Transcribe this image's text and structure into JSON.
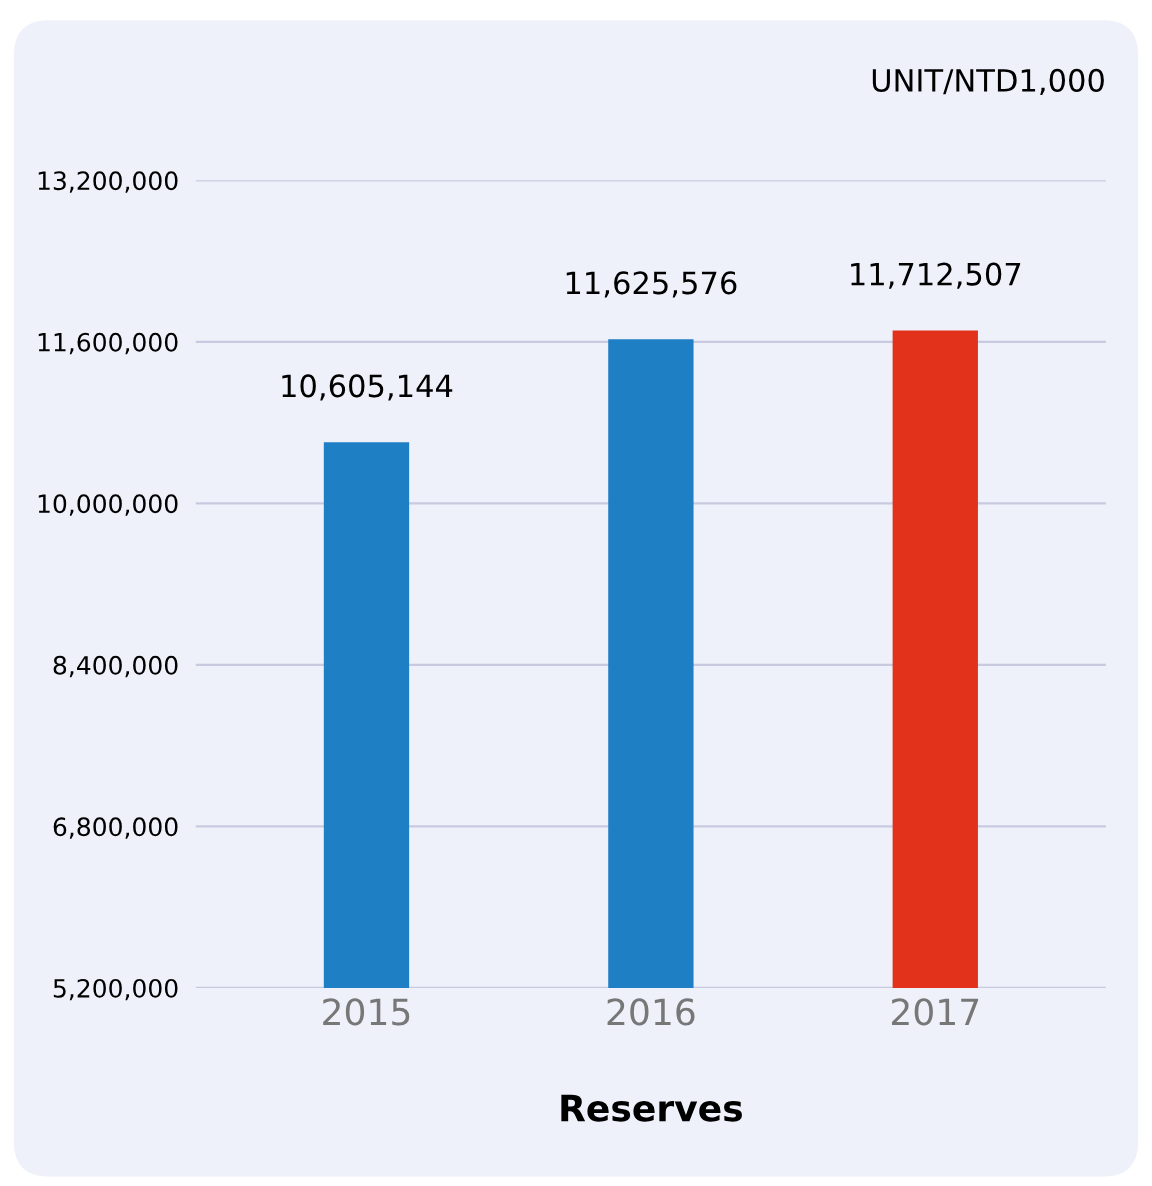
{
  "chart_data": {
    "type": "bar",
    "xlabel": "Reserves",
    "categories": [
      "2015",
      "2016",
      "2017"
    ],
    "values": [
      10605144,
      11625576,
      11712507
    ],
    "colors": [
      "#1f7fc4",
      "#1f7fc4",
      "#e2321c"
    ],
    "value_labels": [
      "10,605,144",
      "11,625,576",
      "11,712,507"
    ],
    "ylim": [
      5200000,
      13200000
    ],
    "yticks": [
      {
        "value": 5200000,
        "label": "5,200,000"
      },
      {
        "value": 6800000,
        "label": "6,800,000"
      },
      {
        "value": 8400000,
        "label": "8,400,000"
      },
      {
        "value": 10000000,
        "label": "10,000,000"
      },
      {
        "value": 11600000,
        "label": "11,600,000"
      },
      {
        "value": 13200000,
        "label": "13,200,000"
      }
    ],
    "grid": "y",
    "annotations": [
      "UNIT/NTD1,000"
    ]
  }
}
